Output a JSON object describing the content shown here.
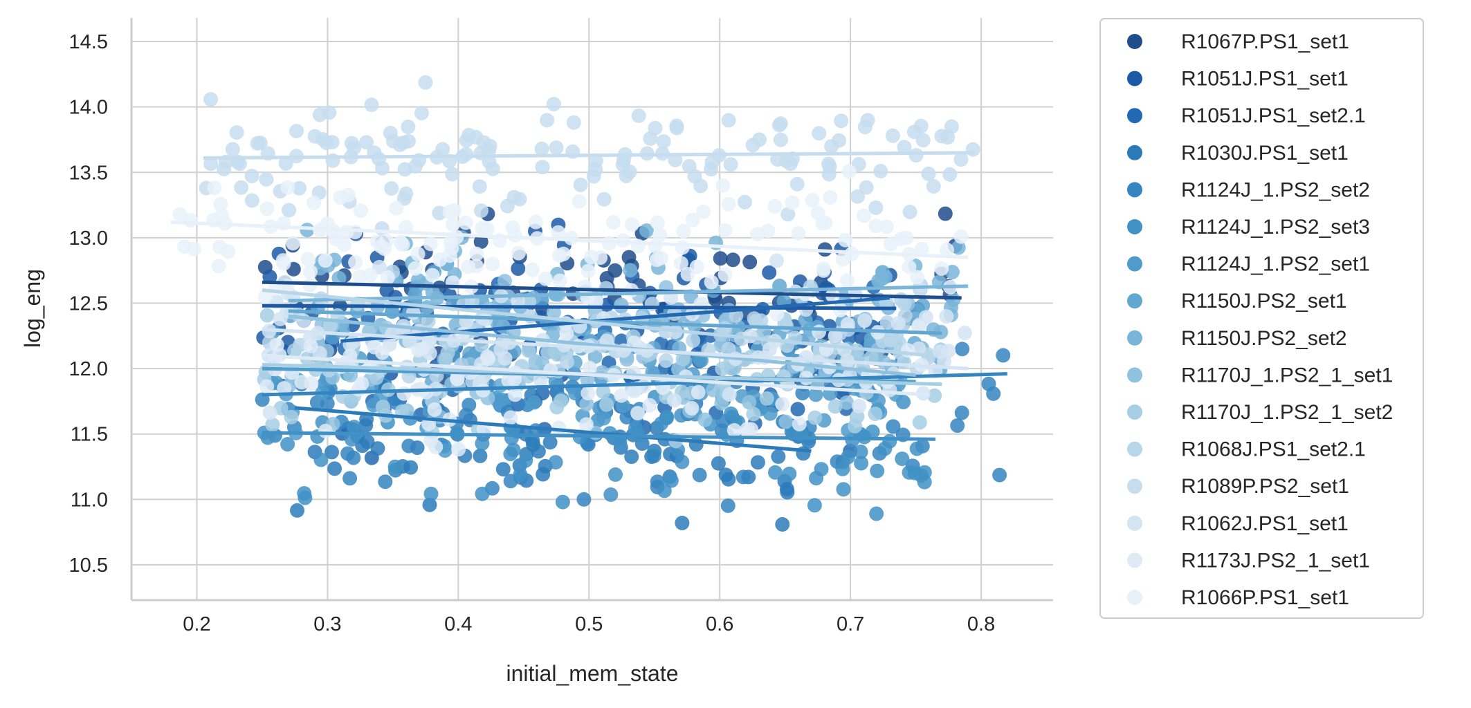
{
  "chart_data": {
    "type": "scatter",
    "xlabel": "initial_mem_state",
    "ylabel": "log_eng",
    "xlim": [
      0.15,
      0.855
    ],
    "ylim": [
      10.23,
      14.68
    ],
    "xticks": [
      "0.2",
      "0.3",
      "0.4",
      "0.5",
      "0.6",
      "0.7",
      "0.8"
    ],
    "xtick_values": [
      0.2,
      0.3,
      0.4,
      0.5,
      0.6,
      0.7,
      0.8
    ],
    "yticks": [
      "10.5",
      "11.0",
      "11.5",
      "12.0",
      "12.5",
      "13.0",
      "13.5",
      "14.0",
      "14.5"
    ],
    "ytick_values": [
      10.5,
      11.0,
      11.5,
      12.0,
      12.5,
      13.0,
      13.5,
      14.0,
      14.5
    ],
    "grid": true,
    "legend_position": "outside-right",
    "series": [
      {
        "name": "R1067P.PS1_set1",
        "color": "#1f4e8c",
        "xrange": [
          0.25,
          0.785
        ],
        "fit": [
          12.66,
          12.54
        ],
        "center": 12.55,
        "spread": 0.55
      },
      {
        "name": "R1051J.PS1_set1",
        "color": "#1c5aa6",
        "xrange": [
          0.25,
          0.735
        ],
        "fit": [
          12.48,
          12.46
        ],
        "center": 12.45,
        "spread": 0.55
      },
      {
        "name": "R1051J.PS1_set2.1",
        "color": "#2268b2",
        "xrange": [
          0.31,
          0.73
        ],
        "fit": [
          12.21,
          12.54
        ],
        "center": 12.0,
        "spread": 0.6
      },
      {
        "name": "R1030J.PS1_set1",
        "color": "#2b7bba",
        "xrange": [
          0.275,
          0.67
        ],
        "fit": [
          11.7,
          11.37
        ],
        "center": 11.45,
        "spread": 0.5
      },
      {
        "name": "R1124J_1.PS2_set2",
        "color": "#3585c1",
        "xrange": [
          0.25,
          0.82
        ],
        "fit": [
          11.8,
          11.96
        ],
        "center": 11.6,
        "spread": 0.6
      },
      {
        "name": "R1124J_1.PS2_set3",
        "color": "#4191c6",
        "xrange": [
          0.25,
          0.765
        ],
        "fit": [
          11.51,
          11.46
        ],
        "center": 11.4,
        "spread": 0.5
      },
      {
        "name": "R1124J_1.PS2_set1",
        "color": "#4f9bcb",
        "xrange": [
          0.25,
          0.75
        ],
        "fit": [
          12.0,
          11.9
        ],
        "center": 11.9,
        "spread": 0.5
      },
      {
        "name": "R1150J.PS2_set1",
        "color": "#62a7d2",
        "xrange": [
          0.27,
          0.77
        ],
        "fit": [
          12.44,
          12.27
        ],
        "center": 12.3,
        "spread": 0.45
      },
      {
        "name": "R1150J.PS2_set2",
        "color": "#79b5d9",
        "xrange": [
          0.27,
          0.79
        ],
        "fit": [
          12.52,
          12.63
        ],
        "center": 12.5,
        "spread": 0.45
      },
      {
        "name": "R1170J_1.PS2_1_set1",
        "color": "#90c2df",
        "xrange": [
          0.27,
          0.75
        ],
        "fit": [
          12.4,
          11.95
        ],
        "center": 12.1,
        "spread": 0.5
      },
      {
        "name": "R1170J_1.PS2_1_set2",
        "color": "#a6cee4",
        "xrange": [
          0.25,
          0.77
        ],
        "fit": [
          12.03,
          11.88
        ],
        "center": 11.95,
        "spread": 0.5
      },
      {
        "name": "R1068J.PS1_set2.1",
        "color": "#b7d6ea",
        "xrange": [
          0.25,
          0.76
        ],
        "fit": [
          12.6,
          12.1
        ],
        "center": 12.3,
        "spread": 0.45
      },
      {
        "name": "R1089P.PS2_set1",
        "color": "#c6ddf0",
        "xrange": [
          0.205,
          0.795
        ],
        "fit": [
          13.61,
          13.65
        ],
        "center": 13.6,
        "spread": 0.4
      },
      {
        "name": "R1062J.PS1_set1",
        "color": "#d3e4f3",
        "xrange": [
          0.25,
          0.79
        ],
        "fit": [
          12.3,
          12.0
        ],
        "center": 12.2,
        "spread": 0.45
      },
      {
        "name": "R1173J.PS2_1_set1",
        "color": "#deebf7",
        "xrange": [
          0.25,
          0.76
        ],
        "fit": [
          12.1,
          11.8
        ],
        "center": 11.95,
        "spread": 0.45
      },
      {
        "name": "R1066P.PS1_set1",
        "color": "#e8f1fa",
        "xrange": [
          0.18,
          0.79
        ],
        "fit": [
          13.12,
          12.85
        ],
        "center": 12.95,
        "spread": 0.45
      }
    ]
  }
}
